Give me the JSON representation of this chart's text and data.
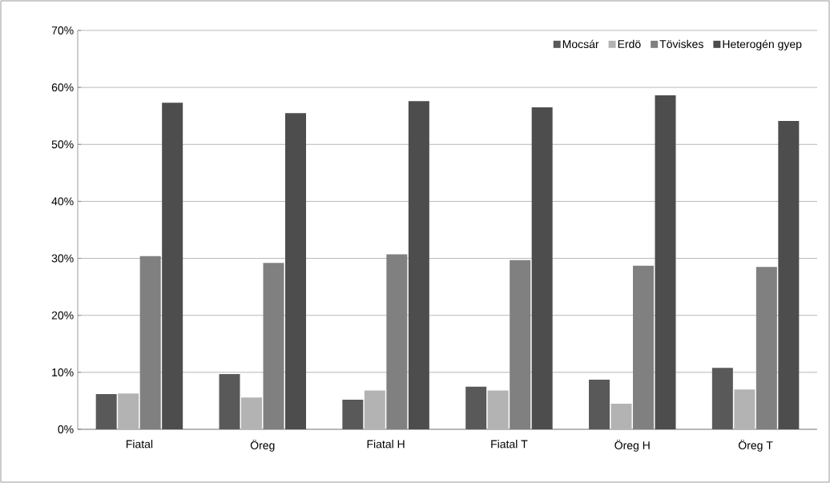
{
  "chart_data": {
    "type": "bar",
    "categories": [
      "Fiatal",
      "Öreg",
      "Fiatal H",
      "Fiatal T",
      "Öreg H",
      "Öreg T"
    ],
    "series": [
      {
        "name": "Mocsár",
        "color": "#595959",
        "values": [
          6.2,
          9.7,
          5.2,
          7.5,
          8.7,
          10.8
        ]
      },
      {
        "name": "Erdö",
        "color": "#b3b3b3",
        "values": [
          6.3,
          5.6,
          6.8,
          6.8,
          4.5,
          7.0
        ]
      },
      {
        "name": "Töviskes",
        "color": "#808080",
        "values": [
          30.4,
          29.2,
          30.7,
          29.7,
          28.7,
          28.5
        ]
      },
      {
        "name": "Heterogén gyep",
        "color": "#4d4d4d",
        "values": [
          57.3,
          55.5,
          57.6,
          56.5,
          58.6,
          54.1
        ]
      }
    ],
    "ylim": [
      0,
      70
    ],
    "yticks": [
      {
        "value": 0,
        "label": "0%"
      },
      {
        "value": 10,
        "label": "10%"
      },
      {
        "value": 20,
        "label": "20%"
      },
      {
        "value": 30,
        "label": "30%"
      },
      {
        "value": 40,
        "label": "40%"
      },
      {
        "value": 50,
        "label": "50%"
      },
      {
        "value": 60,
        "label": "60%"
      },
      {
        "value": 70,
        "label": "70%"
      }
    ],
    "grid": "y",
    "legend": "top right"
  }
}
